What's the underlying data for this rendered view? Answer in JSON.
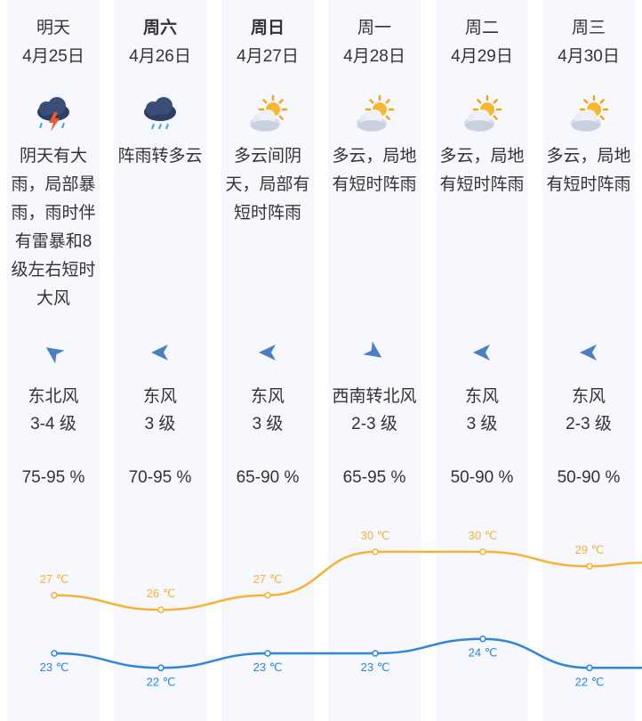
{
  "colors": {
    "column_bg": "#f6f8fd",
    "high_line": "#f5b233",
    "low_line": "#2a86de",
    "wind_arrow": "#4a7fc4"
  },
  "days": [
    {
      "weekday": "明天",
      "date": "4月25日",
      "icon": "thunderstorm-icon",
      "description": "阴天有大雨，局部暴雨，雨时伴有雷暴和8级左右短时大风",
      "wind_direction": "东北风",
      "wind_level": "3-4 级",
      "humidity": "75-95 %",
      "high": "27 ℃",
      "low": "23 ℃",
      "arrow": "northeast-wind-arrow-icon"
    },
    {
      "weekday": "周六",
      "date": "4月26日",
      "icon": "shower-cloud-icon",
      "description": "阵雨转多云",
      "wind_direction": "东风",
      "wind_level": "3 级",
      "humidity": "70-95 %",
      "high": "26 ℃",
      "low": "22 ℃",
      "arrow": "east-wind-arrow-icon"
    },
    {
      "weekday": "周日",
      "date": "4月27日",
      "icon": "partly-cloudy-icon",
      "description": "多云间阴天，局部有短时阵雨",
      "wind_direction": "东风",
      "wind_level": "3 级",
      "humidity": "65-90 %",
      "high": "27 ℃",
      "low": "23 ℃",
      "arrow": "east-wind-arrow-icon"
    },
    {
      "weekday": "周一",
      "date": "4月28日",
      "icon": "partly-cloudy-icon",
      "description": "多云，局地有短时阵雨",
      "wind_direction": "西南转北风",
      "wind_level": "2-3 级",
      "humidity": "65-95 %",
      "high": "30 ℃",
      "low": "23 ℃",
      "arrow": "southwest-wind-arrow-icon"
    },
    {
      "weekday": "周二",
      "date": "4月29日",
      "icon": "partly-cloudy-icon",
      "description": "多云，局地有短时阵雨",
      "wind_direction": "东风",
      "wind_level": "3 级",
      "humidity": "50-90 %",
      "high": "30 ℃",
      "low": "24 ℃",
      "arrow": "east-wind-arrow-icon"
    },
    {
      "weekday": "周三",
      "date": "4月30日",
      "icon": "partly-cloudy-icon",
      "description": "多云，局地有短时阵雨",
      "wind_direction": "东风",
      "wind_level": "2-3 级",
      "humidity": "50-90 %",
      "high": "29 ℃",
      "low": "22 ℃",
      "arrow": "east-wind-arrow-icon"
    }
  ],
  "chart_data": {
    "type": "line",
    "categories": [
      "4月25日",
      "4月26日",
      "4月27日",
      "4月28日",
      "4月29日",
      "4月30日"
    ],
    "series": [
      {
        "values": [
          27,
          26,
          27,
          30,
          30,
          29
        ]
      },
      {
        "values": [
          23,
          22,
          23,
          23,
          24,
          22
        ]
      }
    ]
  }
}
